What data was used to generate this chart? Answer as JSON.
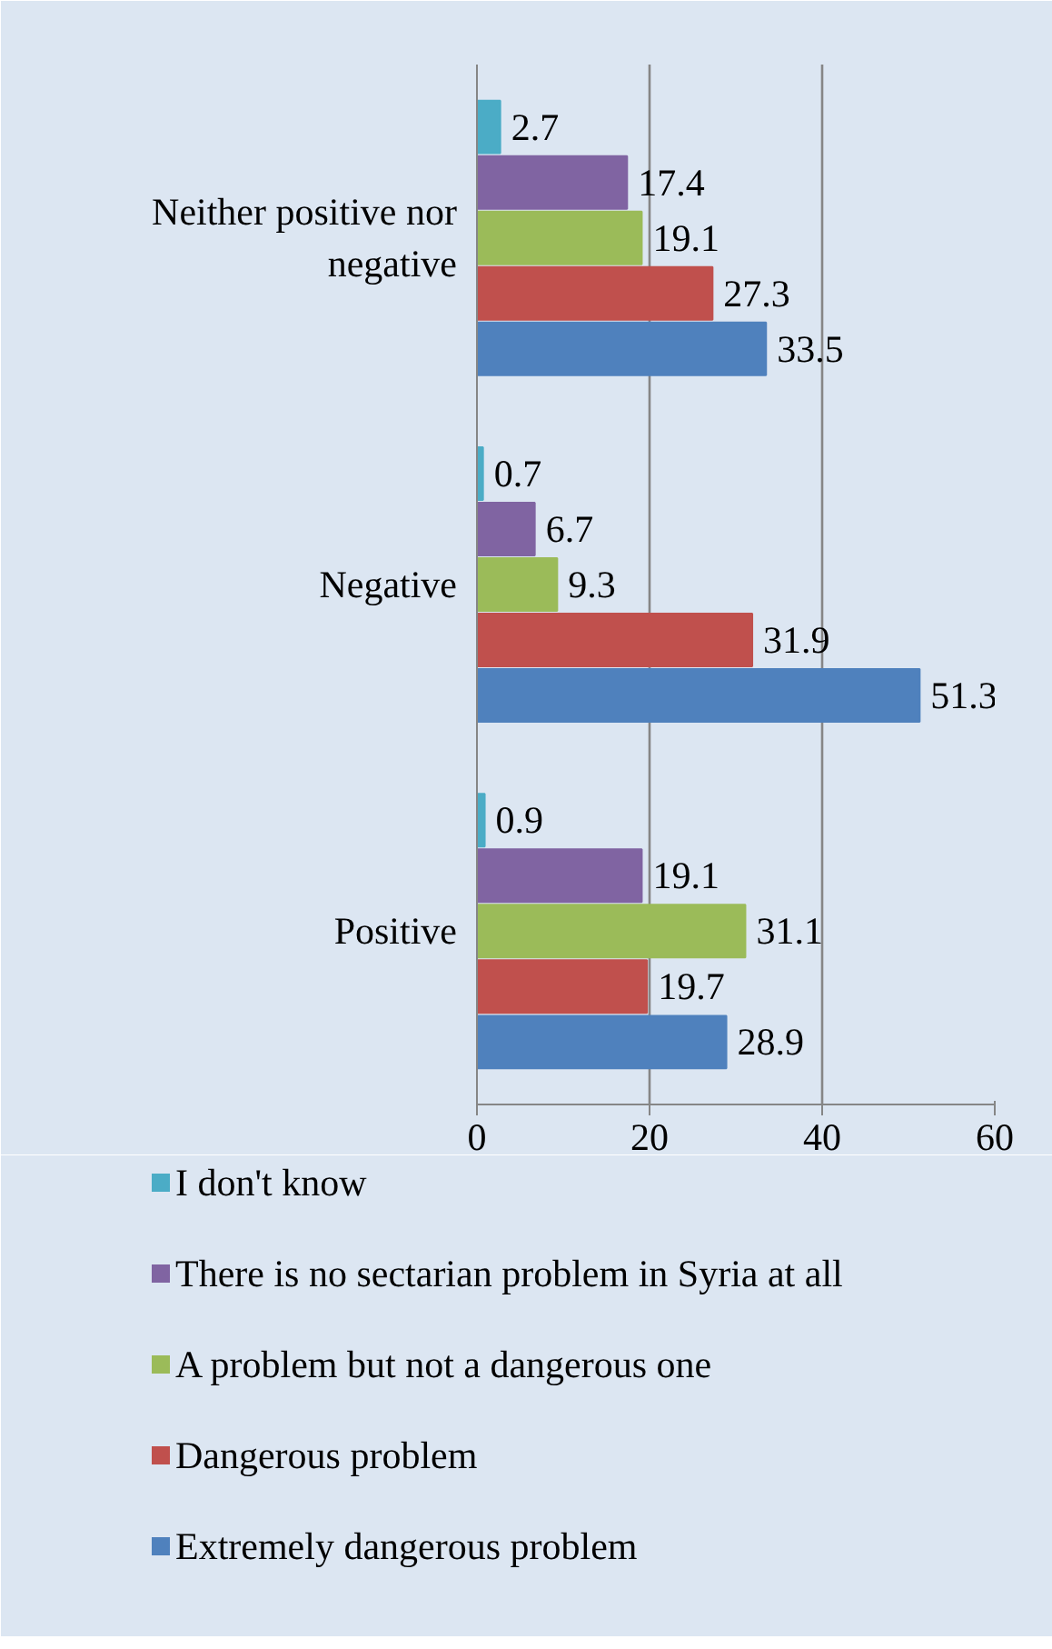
{
  "chart_data": {
    "type": "bar",
    "orientation": "horizontal",
    "categories": [
      "Neither positive nor negative",
      "Negative",
      "Positive"
    ],
    "series": [
      {
        "name": "I don't know",
        "color": "#4bacc6",
        "values": [
          2.7,
          0.7,
          0.9
        ]
      },
      {
        "name": "There is no sectarian problem in Syria at all",
        "color": "#8064a2",
        "values": [
          17.4,
          6.7,
          19.1
        ]
      },
      {
        "name": "A problem but not a dangerous one",
        "color": "#9bbb59",
        "values": [
          19.1,
          9.3,
          31.1
        ]
      },
      {
        "name": "Dangerous problem",
        "color": "#c0504d",
        "values": [
          27.3,
          31.9,
          19.7
        ]
      },
      {
        "name": "Extremely dangerous problem",
        "color": "#4f81bd",
        "values": [
          33.5,
          51.3,
          28.9
        ]
      }
    ],
    "xlim": [
      0,
      60
    ],
    "xticks": [
      0,
      20,
      40,
      60
    ],
    "grid": "x",
    "legend": "bottom",
    "data_labels": true
  }
}
